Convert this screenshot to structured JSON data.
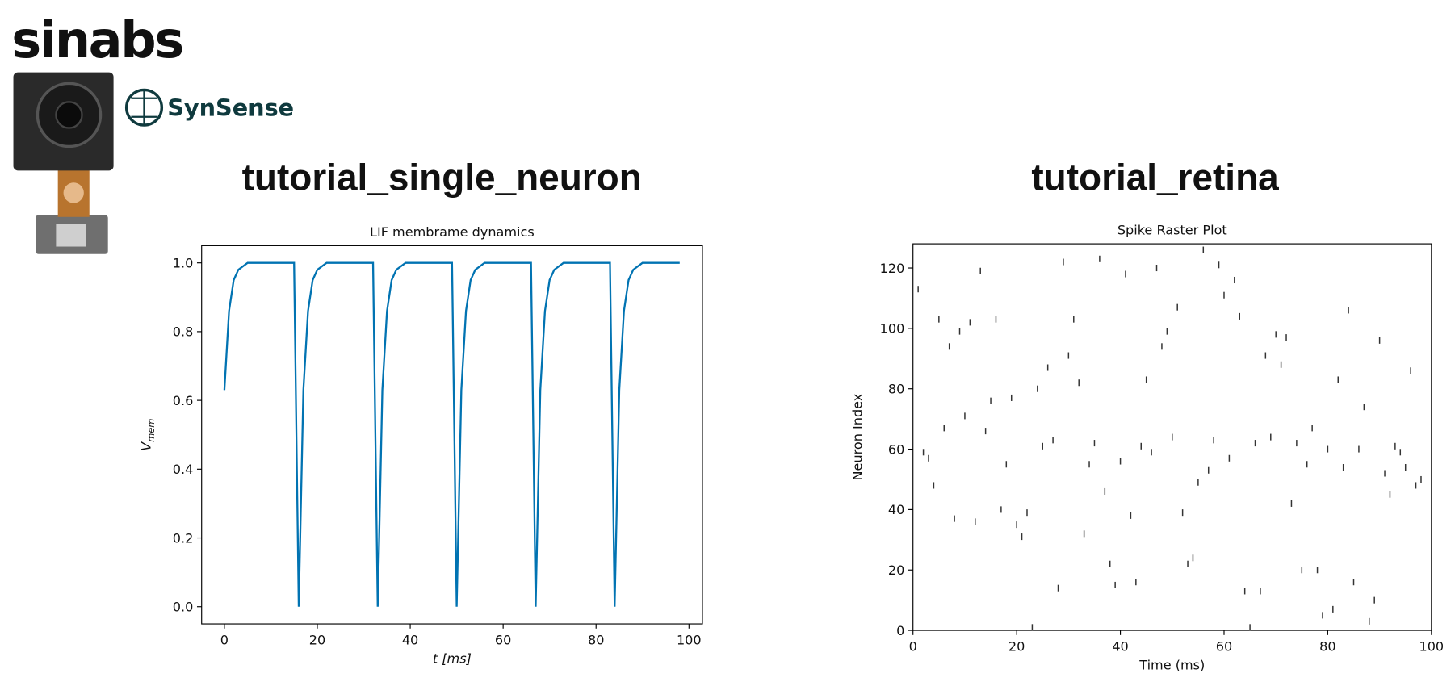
{
  "header": {
    "logo": "sinabs",
    "brand": "SynSense"
  },
  "chart_data": [
    {
      "type": "line",
      "heading": "tutorial_single_neuron",
      "title": "LIF membrame dynamics",
      "xlabel": "t [ms]",
      "ylabel": {
        "symbol": "V",
        "subscript": "mem"
      },
      "color": "#0173b2",
      "x": [
        0,
        1,
        2,
        3,
        4,
        5,
        6,
        7,
        8,
        9,
        10,
        11,
        12,
        13,
        14,
        15,
        16,
        17,
        18,
        19,
        20,
        21,
        22,
        23,
        24,
        25,
        26,
        27,
        28,
        29,
        30,
        31,
        32,
        33,
        34,
        35,
        36,
        37,
        38,
        39,
        40,
        41,
        42,
        43,
        44,
        45,
        46,
        47,
        48,
        49,
        50,
        51,
        52,
        53,
        54,
        55,
        56,
        57,
        58,
        59,
        60,
        61,
        62,
        63,
        64,
        65,
        66,
        67,
        68,
        69,
        70,
        71,
        72,
        73,
        74,
        75,
        76,
        77,
        78,
        79,
        80,
        81,
        82,
        83,
        84,
        85,
        86,
        87,
        88,
        89,
        90,
        91,
        92,
        93,
        94,
        95,
        96,
        97,
        98
      ],
      "values": [
        0.63,
        0.86,
        0.95,
        0.98,
        0.99,
        1,
        1,
        1,
        1,
        1,
        1,
        1,
        1,
        1,
        1,
        1,
        0,
        0.63,
        0.86,
        0.95,
        0.98,
        0.99,
        1,
        1,
        1,
        1,
        1,
        1,
        1,
        1,
        1,
        1,
        1,
        0,
        0.63,
        0.86,
        0.95,
        0.98,
        0.99,
        1,
        1,
        1,
        1,
        1,
        1,
        1,
        1,
        1,
        1,
        1,
        0,
        0.63,
        0.86,
        0.95,
        0.98,
        0.99,
        1,
        1,
        1,
        1,
        1,
        1,
        1,
        1,
        1,
        1,
        1,
        0,
        0.63,
        0.86,
        0.95,
        0.98,
        0.99,
        1,
        1,
        1,
        1,
        1,
        1,
        1,
        1,
        1,
        1,
        1,
        0,
        0.63,
        0.86,
        0.95,
        0.98,
        0.99,
        1,
        1,
        1,
        1,
        1,
        1,
        1,
        1,
        1
      ],
      "xlim": [
        -4.9,
        102.9
      ],
      "ylim": [
        -0.05,
        1.05
      ],
      "xticks": [
        0,
        20,
        40,
        60,
        80,
        100
      ],
      "yticks": [
        {
          "value": 0,
          "label": "0.0"
        },
        0.2,
        0.4,
        0.6,
        0.8,
        {
          "value": 1,
          "label": "1.0"
        }
      ]
    },
    {
      "type": "raster",
      "heading": "tutorial_retina",
      "title": "Spike Raster Plot",
      "xlabel": "Time (ms)",
      "ylabel": "Neuron Index",
      "color": "#333333",
      "x": [
        1,
        2,
        3,
        4,
        5,
        6,
        7,
        8,
        9,
        10,
        11,
        12,
        13,
        14,
        15,
        16,
        17,
        18,
        19,
        20,
        21,
        22,
        23,
        24,
        25,
        26,
        27,
        28,
        29,
        30,
        31,
        32,
        33,
        34,
        35,
        36,
        37,
        38,
        39,
        40,
        41,
        42,
        43,
        44,
        45,
        46,
        47,
        48,
        49,
        50,
        51,
        52,
        53,
        54,
        55,
        56,
        57,
        58,
        59,
        60,
        61,
        62,
        63,
        64,
        65,
        66,
        67,
        68,
        69,
        70,
        71,
        72,
        73,
        74,
        75,
        76,
        77,
        78,
        79,
        80,
        81,
        82,
        83,
        84,
        85,
        86,
        87,
        88,
        89,
        90,
        91,
        92,
        93,
        94,
        95,
        96,
        97,
        98
      ],
      "values": [
        113,
        59,
        57,
        48,
        103,
        67,
        94,
        37,
        99,
        71,
        102,
        36,
        119,
        66,
        76,
        103,
        40,
        55,
        77,
        35,
        31,
        39,
        1,
        80,
        61,
        87,
        63,
        14,
        122,
        91,
        103,
        82,
        32,
        55,
        62,
        123,
        46,
        22,
        15,
        56,
        118,
        38,
        16,
        61,
        83,
        59,
        120,
        94,
        99,
        64,
        107,
        39,
        22,
        24,
        49,
        126,
        53,
        63,
        121,
        111,
        57,
        116,
        104,
        13,
        1,
        62,
        13,
        91,
        64,
        98,
        88,
        97,
        42,
        62,
        20,
        55,
        67,
        20,
        5,
        60,
        7,
        83,
        54,
        106,
        16,
        60,
        74,
        3,
        10,
        96,
        52,
        45,
        61,
        59,
        54,
        86,
        48,
        50
      ],
      "xlim": [
        0,
        100
      ],
      "ylim": [
        0,
        128
      ],
      "xticks": [
        0,
        20,
        40,
        60,
        80,
        100
      ],
      "yticks": [
        0,
        20,
        40,
        60,
        80,
        100,
        120
      ]
    }
  ]
}
